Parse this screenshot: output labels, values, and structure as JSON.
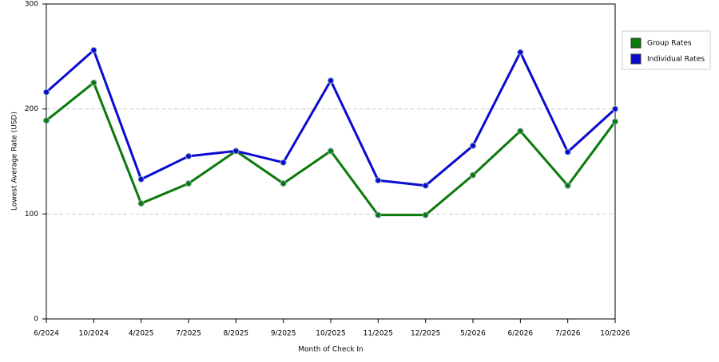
{
  "chart_data": {
    "type": "line",
    "x_label": "Month of Check In",
    "y_label": "Lowest Average Rate (USD)",
    "categories": [
      "6/2024",
      "10/2024",
      "4/2025",
      "7/2025",
      "8/2025",
      "9/2025",
      "10/2025",
      "11/2025",
      "12/2025",
      "5/2026",
      "6/2026",
      "7/2026",
      "10/2026"
    ],
    "series": [
      {
        "name": "Group Rates",
        "color": "#0a7a0a",
        "values": [
          189,
          225,
          110,
          129,
          160,
          129,
          160,
          99,
          99,
          137,
          179,
          127,
          188
        ]
      },
      {
        "name": "Individual Rates",
        "color": "#0a0ad0",
        "values": [
          216,
          256,
          133,
          155,
          160,
          149,
          227,
          132,
          127,
          165,
          254,
          159,
          200
        ]
      }
    ],
    "ylim": [
      0,
      300
    ],
    "yticks": [
      0,
      100,
      200,
      300
    ],
    "grid": true
  }
}
